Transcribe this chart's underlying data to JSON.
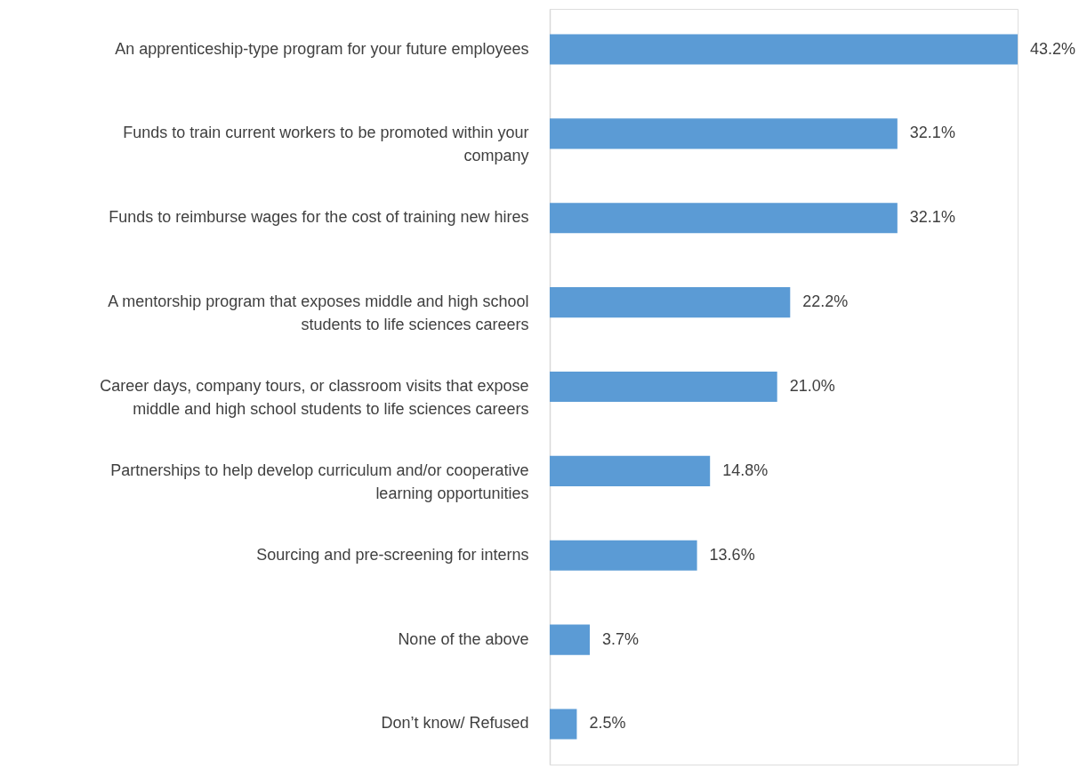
{
  "chart_data": {
    "type": "bar",
    "orientation": "horizontal",
    "categories": [
      "An apprenticeship-type program for your future employees",
      "Funds to train current workers to be promoted within your company",
      "Funds to reimburse wages for the cost of training new hires",
      "A mentorship program that exposes middle and high school students to life sciences careers",
      "Career days, company tours, or classroom visits that expose middle and high school students to life sciences careers",
      "Partnerships to help develop curriculum and/or cooperative learning opportunities",
      "Sourcing and pre-screening for interns",
      "None of the above",
      "Don’t know/ Refused"
    ],
    "values": [
      43.2,
      32.1,
      32.1,
      22.2,
      21.0,
      14.8,
      13.6,
      3.7,
      2.5
    ],
    "value_labels": [
      "43.2%",
      "32.1%",
      "32.1%",
      "22.2%",
      "21.0%",
      "14.8%",
      "13.6%",
      "3.7%",
      "2.5%"
    ],
    "color": "#5b9bd5"
  }
}
